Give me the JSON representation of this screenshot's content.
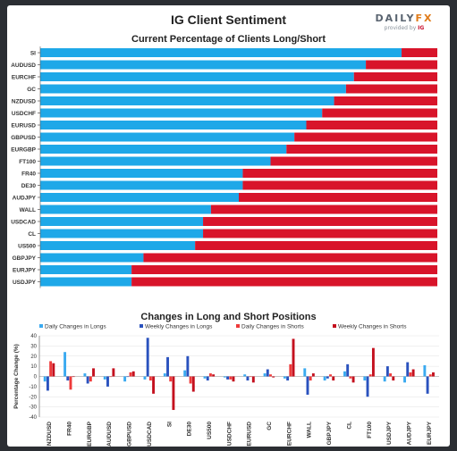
{
  "header": {
    "title": "IG Client Sentiment",
    "logo_text_a": "DAILY",
    "logo_text_b": "FX",
    "logo_sub_a": "provided by",
    "logo_sub_b": "IG"
  },
  "colors": {
    "long": "#1ea8e8",
    "short": "#d8142a",
    "daily_long": "#3aaaf0",
    "weekly_long": "#2a52be",
    "daily_short": "#ee3a3a",
    "weekly_short": "#c4101e"
  },
  "chart_data": [
    {
      "type": "bar",
      "orientation": "horizontal",
      "stacked": true,
      "title": "Current Percentage of Clients Long/Short",
      "categories": [
        "SI",
        "AUDUSD",
        "EURCHF",
        "GC",
        "NZDUSD",
        "USDCHF",
        "EURUSD",
        "GBPUSD",
        "EURGBP",
        "FT100",
        "FR40",
        "DE30",
        "AUDJPY",
        "WALL",
        "USDCAD",
        "CL",
        "US500",
        "GBPJPY",
        "EURJPY",
        "USDJPY"
      ],
      "series": [
        {
          "values": [
            91,
            82,
            79,
            77,
            74,
            71,
            67,
            64,
            62,
            58,
            51,
            51,
            50,
            43,
            41,
            41,
            39,
            26,
            23,
            23
          ]
        },
        {
          "values": [
            9,
            18,
            21,
            23,
            26,
            29,
            33,
            36,
            38,
            42,
            49,
            49,
            50,
            57,
            59,
            59,
            61,
            74,
            77,
            77
          ]
        }
      ],
      "xlim": [
        0,
        100
      ],
      "grid": false
    },
    {
      "type": "bar",
      "title": "Changes in Long and Short Positions",
      "ylabel": "Percentage Change (%)",
      "ylim": [
        -40,
        40
      ],
      "yticks": [
        40,
        30,
        20,
        10,
        0,
        -10,
        -20,
        -30,
        -40
      ],
      "grid": true,
      "legend": "top",
      "categories": [
        "NZDUSD",
        "FR40",
        "EURGBP",
        "AUDUSD",
        "GBPUSD",
        "USDCAD",
        "SI",
        "DE30",
        "US500",
        "USDCHF",
        "EURUSD",
        "GC",
        "EURCHF",
        "WALL",
        "GBPJPY",
        "CL",
        "FT100",
        "USDJPY",
        "AUDJPY",
        "EURJPY"
      ],
      "series": [
        {
          "name": "Daily Changes in Longs",
          "values": [
            -5,
            24,
            3,
            -3,
            -5,
            -3,
            3,
            6,
            -2,
            -1,
            2,
            3,
            -2,
            8,
            -4,
            5,
            -4,
            -5,
            -6,
            11
          ]
        },
        {
          "name": "Weekly Changes in Longs",
          "values": [
            -14,
            -4,
            -7,
            -10,
            0,
            38,
            19,
            20,
            -4,
            -3,
            -4,
            7,
            -4,
            -18,
            -2,
            12,
            -20,
            10,
            14,
            -17
          ]
        },
        {
          "name": "Daily Changes in Shorts",
          "values": [
            15,
            -13,
            -5,
            0,
            4,
            -4,
            -5,
            -7,
            3,
            -3,
            0,
            2,
            12,
            -4,
            2,
            -2,
            2,
            3,
            4,
            2
          ]
        },
        {
          "name": "Weekly Changes in Shorts",
          "values": [
            13,
            0,
            8,
            8,
            5,
            -17,
            -33,
            -15,
            2,
            -5,
            -6,
            -1,
            37,
            3,
            -4,
            -6,
            28,
            -4,
            7,
            4
          ]
        }
      ]
    }
  ]
}
